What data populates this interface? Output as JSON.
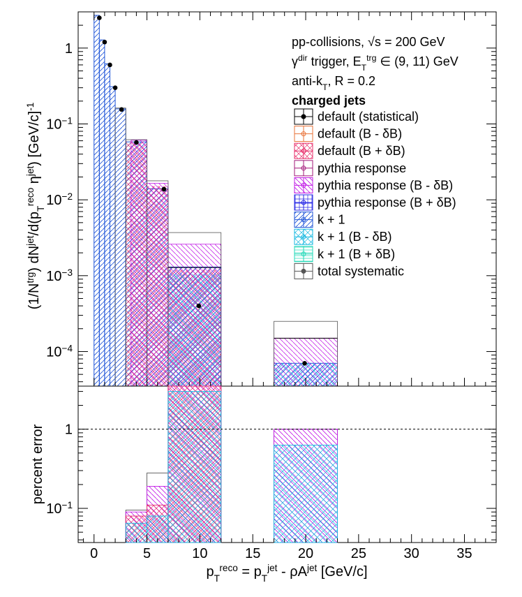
{
  "chart_data": [
    {
      "type": "bar",
      "panel": "spectrum",
      "ylabel_parts": [
        "(1/N",
        "trg",
        ") dN",
        "jet",
        "/d(p",
        "T",
        "reco",
        " η",
        "jet",
        ") [GeV/c]",
        "-1"
      ],
      "yscale": "log",
      "ylim": [
        3.5e-05,
        3.0
      ],
      "y_ticks": [
        {
          "v": 1,
          "mant": "1",
          "exp": ""
        },
        {
          "v": 0.1,
          "mant": "10",
          "exp": "−1"
        },
        {
          "v": 0.01,
          "mant": "10",
          "exp": "−2"
        },
        {
          "v": 0.001,
          "mant": "10",
          "exp": "−3"
        },
        {
          "v": 0.0001,
          "mant": "10",
          "exp": "−4"
        }
      ],
      "bin_edges": [
        0,
        0.5,
        1,
        1.5,
        2,
        2.5,
        3,
        3.5,
        5,
        7,
        12,
        17,
        23
      ],
      "series": [
        {
          "name": "default (statistical)",
          "color": "#000000",
          "points": [
            {
              "x": 0.5,
              "y": 2.5
            },
            {
              "x": 1.0,
              "y": 1.2
            },
            {
              "x": 1.5,
              "y": 0.6
            },
            {
              "x": 2.0,
              "y": 0.3
            },
            {
              "x": 2.6,
              "y": 0.155
            },
            {
              "x": 4.0,
              "y": 0.057
            },
            {
              "x": 6.6,
              "y": 0.0138
            },
            {
              "x": 9.9,
              "y": 0.0004
            },
            {
              "x": 19.9,
              "y": 7e-05
            }
          ]
        },
        {
          "name": "default (B - δB)",
          "color": "#e8733a",
          "fill": "none"
        },
        {
          "name": "default (B + δB)",
          "color": "#e8336e",
          "fill": "cross-hatch"
        },
        {
          "name": "pythia response",
          "color": "#a3197a",
          "fill": "none"
        },
        {
          "name": "pythia response (B - δB)",
          "color": "#c21ee6",
          "fill": "backslash-hatch",
          "bins": [
            {
              "x0": 3.5,
              "x1": 5,
              "y": 0.061
            },
            {
              "x0": 5,
              "x1": 7,
              "y": 0.0165
            },
            {
              "x0": 7,
              "x1": 12,
              "y": 0.0026
            },
            {
              "x0": 17,
              "x1": 23,
              "y": 0.00015
            }
          ]
        },
        {
          "name": "pythia response (B + δB)",
          "color": "#2828e6",
          "fill": "grid-hatch"
        },
        {
          "name": "k + 1",
          "color": "#1f55d8",
          "fill": "slash-hatch",
          "bins": [
            {
              "x0": 0,
              "x1": 0.5,
              "y": 2.7
            },
            {
              "x0": 0.5,
              "x1": 1,
              "y": 1.28
            },
            {
              "x0": 1,
              "x1": 1.5,
              "y": 0.62
            },
            {
              "x0": 1.5,
              "x1": 2,
              "y": 0.31
            },
            {
              "x0": 2,
              "x1": 3,
              "y": 0.158
            },
            {
              "x0": 3,
              "x1": 5,
              "y": 0.058
            },
            {
              "x0": 5,
              "x1": 7,
              "y": 0.014
            },
            {
              "x0": 7,
              "x1": 12,
              "y": 0.0013
            },
            {
              "x0": 17,
              "x1": 23,
              "y": 7e-05
            }
          ]
        },
        {
          "name": "k + 1 (B - δB)",
          "color": "#16b8e0",
          "fill": "cross-hatch"
        },
        {
          "name": "k + 1 (B + δB)",
          "color": "#22d9b8",
          "fill": "horizontal-hatch"
        },
        {
          "name": "total systematic",
          "color": "#555555",
          "fill": "none",
          "bins": [
            {
              "x0": 2,
              "x1": 3,
              "y": 0.162
            },
            {
              "x0": 3,
              "x1": 5,
              "y": 0.062
            },
            {
              "x0": 5,
              "x1": 7,
              "y": 0.0178
            },
            {
              "x0": 7,
              "x1": 12,
              "y": 0.0037
            },
            {
              "x0": 17,
              "x1": 23,
              "y": 0.00025
            }
          ]
        }
      ],
      "annotations": [
        {
          "parts": [
            "pp-collisions, ",
            "√s",
            " = 200 GeV"
          ]
        },
        {
          "parts": [
            "γ",
            "dir",
            " trigger, E",
            "T",
            "trg",
            " ∈ (9, 11) GeV"
          ]
        },
        {
          "parts": [
            "anti-k",
            "T",
            ", R = 0.2"
          ]
        }
      ],
      "legend_title": "charged jets",
      "legend_placement": "top-right"
    },
    {
      "type": "bar",
      "panel": "ratio",
      "ylabel": "percent error",
      "yscale": "log",
      "ylim": [
        0.037,
        3.5
      ],
      "y_ticks": [
        {
          "v": 1,
          "mant": "1",
          "exp": ""
        },
        {
          "v": 0.1,
          "mant": "10",
          "exp": "−1"
        }
      ],
      "reference_line": 1,
      "xlim": [
        -1.5,
        38
      ],
      "x_ticks": [
        0,
        5,
        10,
        15,
        20,
        25,
        30,
        35
      ],
      "xlabel_parts": [
        "p",
        "T",
        "reco",
        " = p",
        "T",
        "jet",
        " - ρA",
        "jet",
        " [GeV/c]"
      ],
      "series": [
        {
          "name": "total systematic",
          "color": "#555555",
          "bins": [
            {
              "x0": 3,
              "x1": 5,
              "y": 0.095
            },
            {
              "x0": 5,
              "x1": 7,
              "y": 0.28
            },
            {
              "x0": 7,
              "x1": 12,
              "y": 3.5
            },
            {
              "x0": 17,
              "x1": 23,
              "y": 1.0
            }
          ]
        },
        {
          "name": "pythia response (B - δB)",
          "color": "#c21ee6",
          "bins": [
            {
              "x0": 3,
              "x1": 5,
              "y": 0.09
            },
            {
              "x0": 5,
              "x1": 7,
              "y": 0.19
            },
            {
              "x0": 7,
              "x1": 12,
              "y": 3.5
            },
            {
              "x0": 17,
              "x1": 23,
              "y": 1.0
            }
          ]
        },
        {
          "name": "default (B + δB)",
          "color": "#e8336e",
          "bins": [
            {
              "x0": 3,
              "x1": 5,
              "y": 0.08
            },
            {
              "x0": 5,
              "x1": 7,
              "y": 0.11
            },
            {
              "x0": 7,
              "x1": 12,
              "y": 3.5
            }
          ]
        },
        {
          "name": "k + 1 (B - δB)",
          "color": "#16b8e0",
          "bins": [
            {
              "x0": 3,
              "x1": 5,
              "y": 0.065
            },
            {
              "x0": 5,
              "x1": 7,
              "y": 0.08
            },
            {
              "x0": 7,
              "x1": 12,
              "y": 3.0
            },
            {
              "x0": 17,
              "x1": 23,
              "y": 0.63
            }
          ]
        }
      ]
    }
  ]
}
